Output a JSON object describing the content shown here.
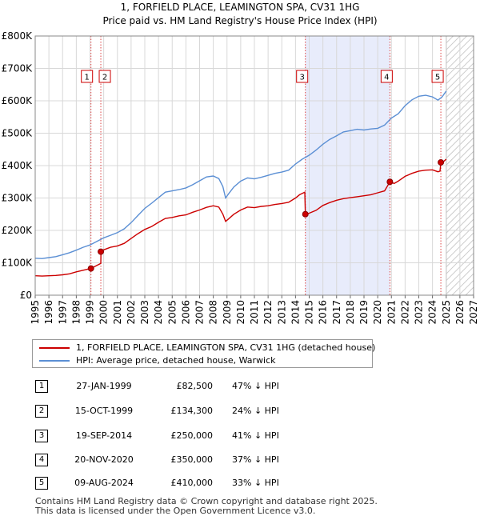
{
  "chart_data": {
    "type": "line",
    "title": "1, FORFIELD PLACE, LEAMINGTON SPA, CV31 1HG",
    "subtitle": "Price paid vs. HM Land Registry's House Price Index (HPI)",
    "xlim": [
      1995,
      2027
    ],
    "ylim": [
      0,
      800000
    ],
    "x_ticks": [
      "1995",
      "1996",
      "1997",
      "1998",
      "1999",
      "2000",
      "2001",
      "2002",
      "2003",
      "2004",
      "2005",
      "2006",
      "2007",
      "2008",
      "2009",
      "2010",
      "2011",
      "2012",
      "2013",
      "2014",
      "2015",
      "2016",
      "2017",
      "2018",
      "2019",
      "2020",
      "2021",
      "2022",
      "2023",
      "2024",
      "2025",
      "2026",
      "2027"
    ],
    "y_ticks": [
      {
        "value": 0,
        "label": "£0"
      },
      {
        "value": 100000,
        "label": "£100K"
      },
      {
        "value": 200000,
        "label": "£200K"
      },
      {
        "value": 300000,
        "label": "£300K"
      },
      {
        "value": 400000,
        "label": "£400K"
      },
      {
        "value": 500000,
        "label": "£500K"
      },
      {
        "value": 600000,
        "label": "£600K"
      },
      {
        "value": 700000,
        "label": "£700K"
      },
      {
        "value": 800000,
        "label": "£800K"
      }
    ],
    "grid": true,
    "shaded_period": [
      2014.72,
      2020.89
    ],
    "forecast_from": 2025.0,
    "series": [
      {
        "name": "1, FORFIELD PLACE, LEAMINGTON SPA, CV31 1HG (detached house)",
        "color": "#cc0000",
        "points": [
          [
            1995.0,
            60000
          ],
          [
            1995.5,
            59000
          ],
          [
            1996.0,
            60000
          ],
          [
            1996.5,
            61000
          ],
          [
            1997.0,
            63000
          ],
          [
            1997.5,
            66000
          ],
          [
            1998.0,
            72000
          ],
          [
            1998.5,
            77000
          ],
          [
            1999.07,
            82500
          ],
          [
            1999.5,
            92000
          ],
          [
            1999.79,
            98000
          ],
          [
            1999.8,
            134300
          ],
          [
            2000.0,
            140000
          ],
          [
            2000.5,
            148000
          ],
          [
            2001.0,
            152000
          ],
          [
            2001.5,
            160000
          ],
          [
            2002.0,
            175000
          ],
          [
            2002.5,
            190000
          ],
          [
            2003.0,
            203000
          ],
          [
            2003.5,
            212000
          ],
          [
            2004.0,
            225000
          ],
          [
            2004.5,
            237000
          ],
          [
            2005.0,
            240000
          ],
          [
            2005.5,
            245000
          ],
          [
            2006.0,
            248000
          ],
          [
            2006.5,
            256000
          ],
          [
            2007.0,
            263000
          ],
          [
            2007.5,
            271000
          ],
          [
            2008.0,
            276000
          ],
          [
            2008.4,
            272000
          ],
          [
            2008.7,
            250000
          ],
          [
            2008.9,
            228000
          ],
          [
            2009.1,
            235000
          ],
          [
            2009.5,
            250000
          ],
          [
            2010.0,
            263000
          ],
          [
            2010.5,
            272000
          ],
          [
            2011.0,
            270000
          ],
          [
            2011.5,
            274000
          ],
          [
            2012.0,
            276000
          ],
          [
            2012.5,
            280000
          ],
          [
            2013.0,
            283000
          ],
          [
            2013.5,
            287000
          ],
          [
            2014.0,
            300000
          ],
          [
            2014.3,
            310000
          ],
          [
            2014.68,
            318000
          ],
          [
            2014.72,
            250000
          ],
          [
            2015.0,
            253000
          ],
          [
            2015.5,
            262000
          ],
          [
            2016.0,
            277000
          ],
          [
            2016.5,
            286000
          ],
          [
            2017.0,
            293000
          ],
          [
            2017.5,
            298000
          ],
          [
            2018.0,
            301000
          ],
          [
            2018.5,
            304000
          ],
          [
            2019.0,
            307000
          ],
          [
            2019.5,
            310000
          ],
          [
            2020.0,
            316000
          ],
          [
            2020.5,
            322000
          ],
          [
            2020.89,
            350000
          ],
          [
            2021.2,
            345000
          ],
          [
            2021.5,
            352000
          ],
          [
            2022.0,
            367000
          ],
          [
            2022.5,
            376000
          ],
          [
            2023.0,
            383000
          ],
          [
            2023.5,
            386000
          ],
          [
            2024.0,
            387000
          ],
          [
            2024.4,
            381000
          ],
          [
            2024.55,
            383000
          ],
          [
            2024.61,
            410000
          ],
          [
            2024.8,
            412000
          ],
          [
            2025.0,
            420000
          ]
        ]
      },
      {
        "name": "HPI: Average price, detached house, Warwick",
        "color": "#5b8fd4",
        "points": [
          [
            1995.0,
            114000
          ],
          [
            1995.5,
            113000
          ],
          [
            1996.0,
            116000
          ],
          [
            1996.5,
            119000
          ],
          [
            1997.0,
            125000
          ],
          [
            1997.5,
            131000
          ],
          [
            1998.0,
            139000
          ],
          [
            1998.5,
            148000
          ],
          [
            1999.0,
            155000
          ],
          [
            1999.5,
            166000
          ],
          [
            2000.0,
            177000
          ],
          [
            2000.5,
            185000
          ],
          [
            2001.0,
            193000
          ],
          [
            2001.5,
            205000
          ],
          [
            2002.0,
            224000
          ],
          [
            2002.5,
            246000
          ],
          [
            2003.0,
            268000
          ],
          [
            2003.5,
            284000
          ],
          [
            2004.0,
            301000
          ],
          [
            2004.5,
            318000
          ],
          [
            2005.0,
            322000
          ],
          [
            2005.5,
            326000
          ],
          [
            2006.0,
            331000
          ],
          [
            2006.5,
            341000
          ],
          [
            2007.0,
            353000
          ],
          [
            2007.5,
            365000
          ],
          [
            2008.0,
            368000
          ],
          [
            2008.4,
            360000
          ],
          [
            2008.7,
            335000
          ],
          [
            2008.9,
            300000
          ],
          [
            2009.1,
            312000
          ],
          [
            2009.5,
            334000
          ],
          [
            2010.0,
            352000
          ],
          [
            2010.5,
            362000
          ],
          [
            2011.0,
            359000
          ],
          [
            2011.5,
            364000
          ],
          [
            2012.0,
            370000
          ],
          [
            2012.5,
            376000
          ],
          [
            2013.0,
            380000
          ],
          [
            2013.5,
            386000
          ],
          [
            2014.0,
            405000
          ],
          [
            2014.5,
            420000
          ],
          [
            2015.0,
            432000
          ],
          [
            2015.5,
            448000
          ],
          [
            2016.0,
            466000
          ],
          [
            2016.5,
            481000
          ],
          [
            2017.0,
            492000
          ],
          [
            2017.5,
            504000
          ],
          [
            2018.0,
            508000
          ],
          [
            2018.5,
            512000
          ],
          [
            2019.0,
            510000
          ],
          [
            2019.5,
            513000
          ],
          [
            2020.0,
            515000
          ],
          [
            2020.5,
            525000
          ],
          [
            2021.0,
            547000
          ],
          [
            2021.5,
            560000
          ],
          [
            2022.0,
            585000
          ],
          [
            2022.5,
            603000
          ],
          [
            2023.0,
            614000
          ],
          [
            2023.5,
            617000
          ],
          [
            2024.0,
            612000
          ],
          [
            2024.4,
            602000
          ],
          [
            2024.7,
            612000
          ],
          [
            2025.0,
            630000
          ]
        ]
      }
    ],
    "sales": [
      {
        "marker": "1",
        "date": "27-JAN-1999",
        "x": 1999.07,
        "price": 82500,
        "price_label": "£82,500",
        "delta": "47% ↓ HPI"
      },
      {
        "marker": "2",
        "date": "15-OCT-1999",
        "x": 1999.79,
        "price": 134300,
        "price_label": "£134,300",
        "delta": "24% ↓ HPI"
      },
      {
        "marker": "3",
        "date": "19-SEP-2014",
        "x": 2014.72,
        "price": 250000,
        "price_label": "£250,000",
        "delta": "41% ↓ HPI"
      },
      {
        "marker": "4",
        "date": "20-NOV-2020",
        "x": 2020.89,
        "price": 350000,
        "price_label": "£350,000",
        "delta": "37% ↓ HPI"
      },
      {
        "marker": "5",
        "date": "09-AUG-2024",
        "x": 2024.61,
        "price": 410000,
        "price_label": "£410,000",
        "delta": "33% ↓ HPI"
      }
    ]
  },
  "legend": {
    "property_label": "1, FORFIELD PLACE, LEAMINGTON SPA, CV31 1HG (detached house)",
    "hpi_label": "HPI: Average price, detached house, Warwick"
  },
  "footer": {
    "line1": "Contains HM Land Registry data © Crown copyright and database right 2025.",
    "line2": "This data is licensed under the Open Government Licence v3.0."
  }
}
